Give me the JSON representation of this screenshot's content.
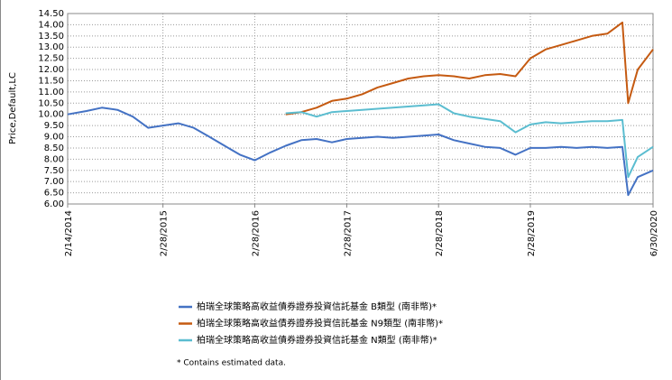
{
  "chart_data": {
    "type": "line",
    "y_label": "Price,Default,LC",
    "x": [
      "2/14/2014",
      "4/30/2014",
      "6/30/2014",
      "8/31/2014",
      "10/31/2014",
      "12/31/2014",
      "2/28/2015",
      "4/30/2015",
      "6/30/2015",
      "8/31/2015",
      "10/31/2015",
      "12/31/2015",
      "2/28/2016",
      "4/30/2016",
      "6/30/2016",
      "8/31/2016",
      "10/31/2016",
      "12/31/2016",
      "2/28/2017",
      "4/30/2017",
      "6/30/2017",
      "8/31/2017",
      "10/31/2017",
      "12/31/2017",
      "2/28/2018",
      "4/30/2018",
      "6/30/2018",
      "8/31/2018",
      "10/31/2018",
      "12/31/2018",
      "2/28/2019",
      "4/30/2019",
      "6/30/2019",
      "8/31/2019",
      "10/31/2019",
      "12/31/2019",
      "2/29/2020",
      "3/23/2020",
      "4/30/2020",
      "6/30/2020"
    ],
    "series": [
      {
        "name": "柏瑞全球策略高收益債券證券投資信託基金 B類型 (南非幣)*",
        "color": "#4472c4",
        "values": [
          10.0,
          10.15,
          10.3,
          10.2,
          9.9,
          9.4,
          9.5,
          9.6,
          9.4,
          9.0,
          8.6,
          8.2,
          7.95,
          8.3,
          8.6,
          8.85,
          8.9,
          8.75,
          8.9,
          8.95,
          9.0,
          8.95,
          9.0,
          9.05,
          9.1,
          8.85,
          8.7,
          8.55,
          8.5,
          8.2,
          8.5,
          8.5,
          8.55,
          8.5,
          8.55,
          8.5,
          8.55,
          6.4,
          7.2,
          7.5
        ]
      },
      {
        "name": "柏瑞全球策略高收益債券證券投資信託基金 N9類型 (南非幣)*",
        "color": "#c55a11",
        "values": [
          null,
          null,
          null,
          null,
          null,
          null,
          null,
          null,
          null,
          null,
          null,
          null,
          null,
          null,
          10.0,
          10.1,
          10.3,
          10.6,
          10.7,
          10.9,
          11.2,
          11.4,
          11.6,
          11.7,
          11.75,
          11.7,
          11.6,
          11.75,
          11.8,
          11.7,
          12.5,
          12.9,
          13.1,
          13.3,
          13.5,
          13.6,
          14.1,
          10.5,
          12.0,
          12.9
        ]
      },
      {
        "name": "柏瑞全球策略高收益債券證券投資信託基金 N類型 (南非幣)*",
        "color": "#5bbdd0",
        "values": [
          null,
          null,
          null,
          null,
          null,
          null,
          null,
          null,
          null,
          null,
          null,
          null,
          null,
          null,
          10.05,
          10.1,
          9.9,
          10.1,
          10.15,
          10.2,
          10.25,
          10.3,
          10.35,
          10.4,
          10.45,
          10.05,
          9.9,
          9.8,
          9.7,
          9.2,
          9.55,
          9.65,
          9.6,
          9.65,
          9.7,
          9.7,
          9.75,
          7.2,
          8.1,
          8.55
        ]
      }
    ],
    "xlim": [
      "2/14/2014",
      "6/30/2020"
    ],
    "xticks": [
      "2/14/2014",
      "2/28/2015",
      "2/28/2016",
      "2/28/2017",
      "2/28/2018",
      "2/28/2019",
      "6/30/2020"
    ],
    "ylim": [
      6,
      14.5
    ],
    "yticks": [
      {
        "value": 6,
        "label": "6.00"
      },
      {
        "value": 6.5,
        "label": "6.50"
      },
      {
        "value": 7,
        "label": "7.00"
      },
      {
        "value": 7.5,
        "label": "7.50"
      },
      {
        "value": 8,
        "label": "8.00"
      },
      {
        "value": 8.5,
        "label": "8.50"
      },
      {
        "value": 9,
        "label": "9.00"
      },
      {
        "value": 9.5,
        "label": "9.50"
      },
      {
        "value": 10,
        "label": "10.00"
      },
      {
        "value": 10.5,
        "label": "10.50"
      },
      {
        "value": 11,
        "label": "11.00"
      },
      {
        "value": 11.5,
        "label": "11.50"
      },
      {
        "value": 12,
        "label": "12.00"
      },
      {
        "value": 12.5,
        "label": "12.50"
      },
      {
        "value": 13,
        "label": "13.00"
      },
      {
        "value": 13.5,
        "label": "13.50"
      },
      {
        "value": 14,
        "label": "14.00"
      },
      {
        "value": 14.5,
        "label": "14.50"
      }
    ],
    "grid": true,
    "footnote": "*  Contains estimated data."
  }
}
